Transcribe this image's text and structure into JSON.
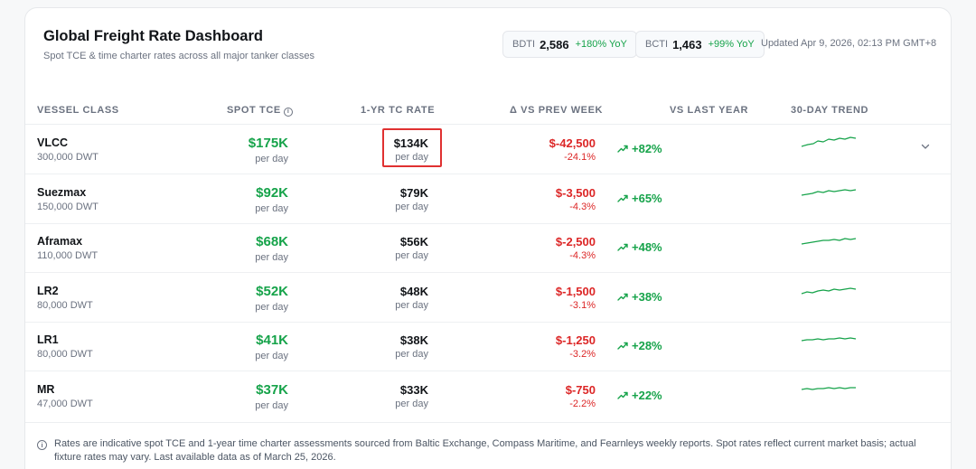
{
  "header": {
    "title": "Global Freight Rate Dashboard",
    "subtitle": "Spot TCE & time charter rates across all major tanker classes",
    "indices": [
      {
        "label": "BDTI",
        "value": "2,586",
        "change": "+180% YoY"
      },
      {
        "label": "BCTI",
        "value": "1,463",
        "change": "+99% YoY"
      }
    ],
    "updated": "Updated Apr 9, 2026, 02:13 PM GMT+8"
  },
  "table": {
    "columns": {
      "vessel_class": "VESSEL CLASS",
      "spot_tce": "SPOT TCE",
      "tc_rate": "1-YR TC RATE",
      "delta": "Δ VS PREV WEEK",
      "vs_last_year": "VS LAST YEAR",
      "trend": "30-DAY TREND"
    },
    "unit_label": "per day",
    "rows": [
      {
        "name": "VLCC",
        "dwt": "300,000 DWT",
        "spot": "$175K",
        "tc": "$134K",
        "delta": "$-42,500",
        "delta_pct": "-24.1%",
        "yoy": "+82%",
        "expanded_toggle": true,
        "highlighted": true
      },
      {
        "name": "Suezmax",
        "dwt": "150,000 DWT",
        "spot": "$92K",
        "tc": "$79K",
        "delta": "$-3,500",
        "delta_pct": "-4.3%",
        "yoy": "+65%"
      },
      {
        "name": "Aframax",
        "dwt": "110,000 DWT",
        "spot": "$68K",
        "tc": "$56K",
        "delta": "$-2,500",
        "delta_pct": "-4.3%",
        "yoy": "+48%"
      },
      {
        "name": "LR2",
        "dwt": "80,000 DWT",
        "spot": "$52K",
        "tc": "$48K",
        "delta": "$-1,500",
        "delta_pct": "-3.1%",
        "yoy": "+38%"
      },
      {
        "name": "LR1",
        "dwt": "80,000 DWT",
        "spot": "$41K",
        "tc": "$38K",
        "delta": "$-1,250",
        "delta_pct": "-3.2%",
        "yoy": "+28%"
      },
      {
        "name": "MR",
        "dwt": "47,000 DWT",
        "spot": "$37K",
        "tc": "$33K",
        "delta": "$-750",
        "delta_pct": "-2.2%",
        "yoy": "+22%"
      }
    ]
  },
  "footnote": "Rates are indicative spot TCE and 1-year time charter assessments sourced from Baltic Exchange, Compass Maritime, and Fearnleys weekly reports. Spot rates reflect current market basis; actual fixture rates may vary. Last available data as of March 25, 2026.",
  "colors": {
    "positive": "#16a34a",
    "negative": "#dc2626",
    "highlight": "#e03131"
  },
  "icons": {
    "info": "info-icon",
    "trend_up": "trend-up-icon",
    "expand": "chevron-down-icon"
  }
}
